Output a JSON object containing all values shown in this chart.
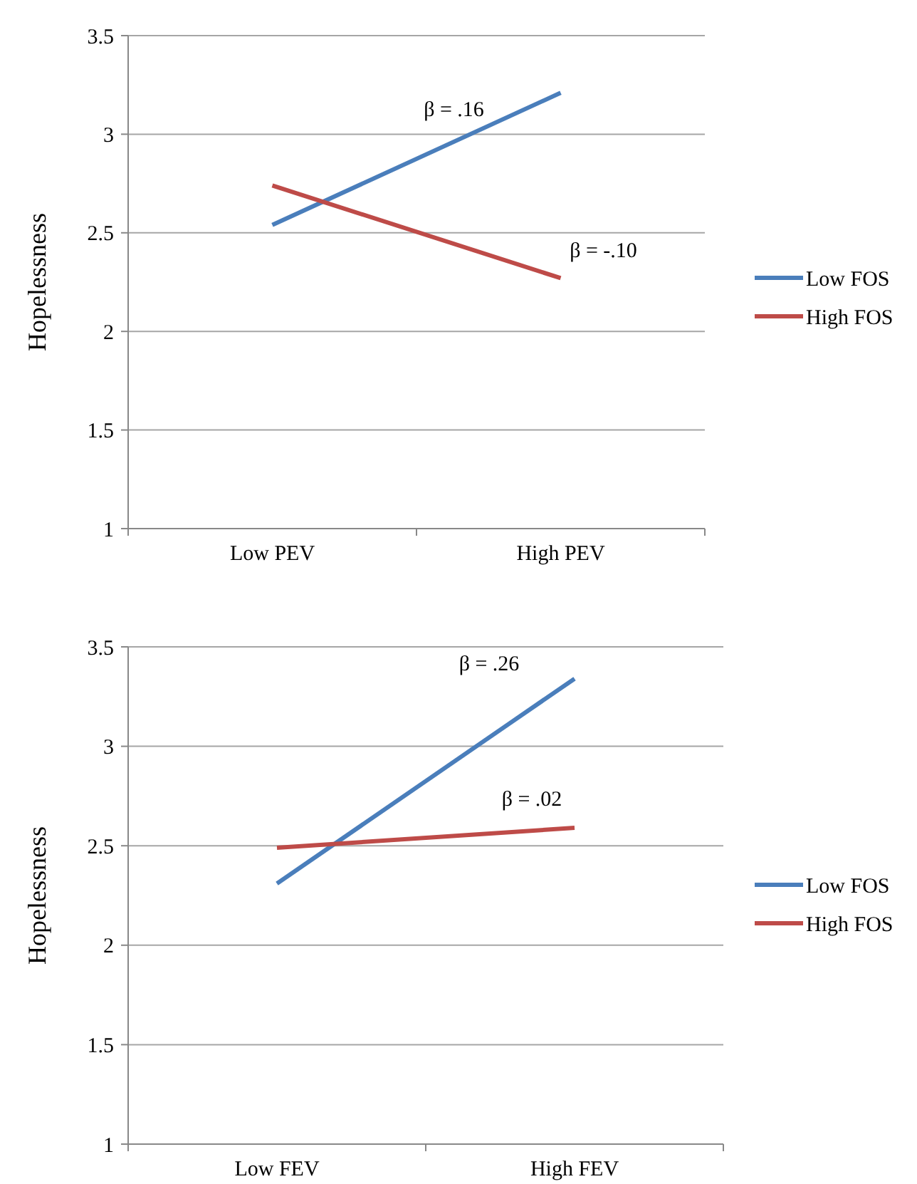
{
  "chart_data": [
    {
      "type": "line",
      "ylabel": "Hopelessness",
      "categories": [
        "Low PEV",
        "High PEV"
      ],
      "ylim": [
        1,
        3.5
      ],
      "yticks": [
        1,
        1.5,
        2,
        2.5,
        3,
        3.5
      ],
      "grid": "y",
      "legend": "right",
      "series": [
        {
          "name": "Low FOS",
          "color": "#4a7ebb",
          "values": [
            2.54,
            3.21
          ]
        },
        {
          "name": "High FOS",
          "color": "#be4b48",
          "values": [
            2.74,
            2.27
          ]
        }
      ],
      "annotations": [
        "β = .16",
        "β = -.10"
      ]
    },
    {
      "type": "line",
      "ylabel": "Hopelessness",
      "categories": [
        "Low FEV",
        "High FEV"
      ],
      "ylim": [
        1,
        3.5
      ],
      "yticks": [
        1,
        1.5,
        2,
        2.5,
        3,
        3.5
      ],
      "grid": "y",
      "legend": "right",
      "series": [
        {
          "name": "Low FOS",
          "color": "#4a7ebb",
          "values": [
            2.31,
            3.34
          ]
        },
        {
          "name": "High FOS",
          "color": "#be4b48",
          "values": [
            2.49,
            2.59
          ]
        }
      ],
      "annotations": [
        "β = .26",
        "β = .02"
      ]
    }
  ]
}
